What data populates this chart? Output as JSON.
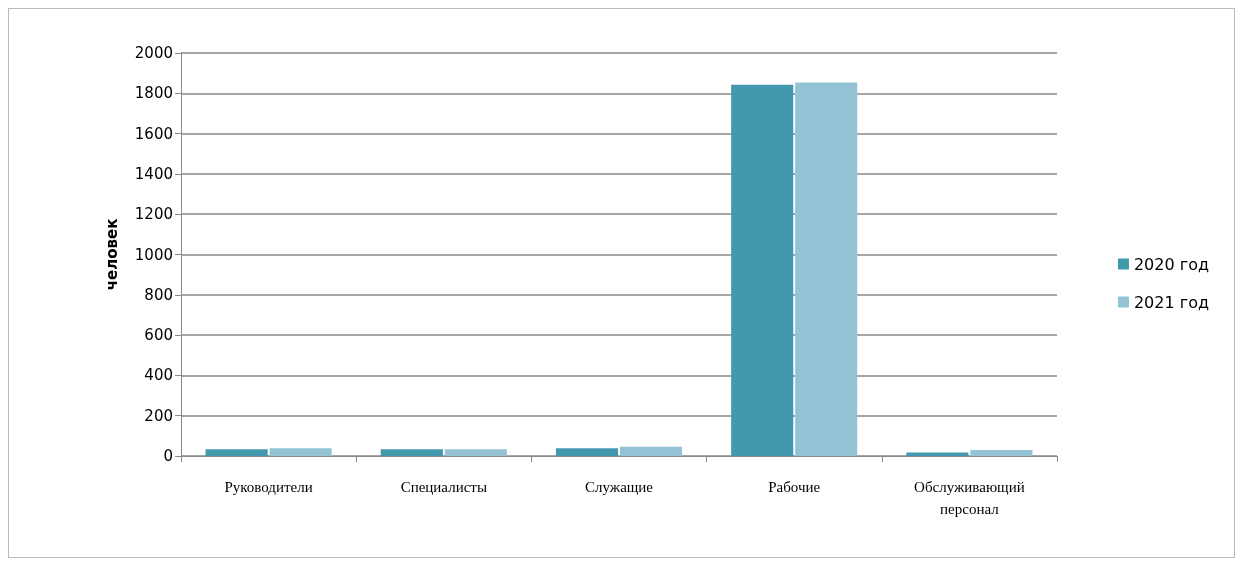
{
  "chart_data": {
    "type": "bar",
    "ylabel": "человек",
    "categories": [
      "Руководители",
      "Специалисты",
      "Служащие",
      "Рабочие",
      "Обслуживающий\nперсонал"
    ],
    "series": [
      {
        "name": "2020 год",
        "color": "#4398ae",
        "values": [
          34,
          34,
          39,
          1843,
          17
        ]
      },
      {
        "name": "2021 год",
        "color": "#93c3d5",
        "values": [
          39,
          33,
          46,
          1854,
          30
        ]
      }
    ],
    "ylim": [
      0,
      2000
    ],
    "yticks": [
      0,
      200,
      400,
      600,
      800,
      1000,
      1200,
      1400,
      1600,
      1800,
      2000
    ],
    "grid": "y",
    "legend": "right"
  }
}
